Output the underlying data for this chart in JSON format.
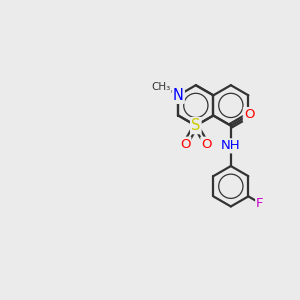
{
  "bg_color": "#ebebeb",
  "bond_color": "#333333",
  "atom_colors": {
    "F": "#cc00cc",
    "O": "#ff0000",
    "N": "#0000ff",
    "S": "#cccc00",
    "C": "#333333"
  },
  "bond_width": 1.6,
  "font_size": 9.5,
  "ring_inner_ratio": 0.6,
  "ring_inner_lw": 0.9
}
